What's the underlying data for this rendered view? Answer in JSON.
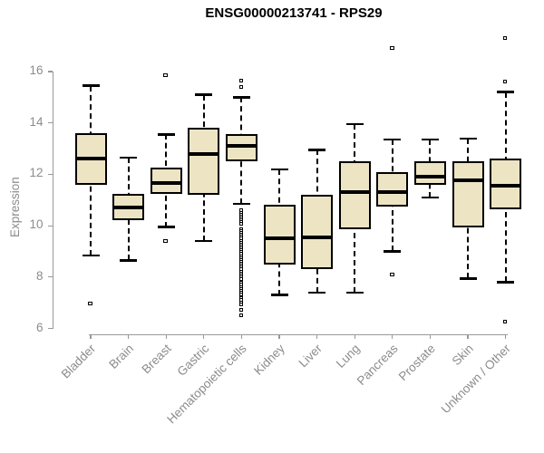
{
  "chart_data": {
    "type": "boxplot",
    "title": "ENSG00000213741 - RPS29",
    "ylabel": "Expression",
    "xlabel": "",
    "ylim": [
      6,
      16
    ],
    "yticks": [
      6,
      8,
      10,
      12,
      14,
      16
    ],
    "grid": false,
    "legend_position": "none",
    "colors": {
      "box_fill": "#EDE4C4",
      "box_border": "#000000",
      "median": "#000000",
      "whisker": "#000000",
      "axis": "#999999",
      "tick_label": "#8c8c8c",
      "title": "#000000",
      "background": "#ffffff"
    },
    "categories": [
      "Bladder",
      "Brain",
      "Breast",
      "Gastric",
      "Hematopoietic cells",
      "Kidney",
      "Liver",
      "Lung",
      "Pancreas",
      "Prostate",
      "Skin",
      "Unknown / Other"
    ],
    "series": [
      {
        "name": "Bladder",
        "whisker_low": 8.85,
        "q1": 11.6,
        "median": 12.6,
        "q3": 13.6,
        "whisker_high": 15.45,
        "outliers": [
          6.95
        ]
      },
      {
        "name": "Brain",
        "whisker_low": 8.65,
        "q1": 10.2,
        "median": 10.7,
        "q3": 11.25,
        "whisker_high": 12.65,
        "outliers": []
      },
      {
        "name": "Breast",
        "whisker_low": 9.95,
        "q1": 11.25,
        "median": 11.65,
        "q3": 12.25,
        "whisker_high": 13.55,
        "outliers": [
          15.85,
          9.4
        ]
      },
      {
        "name": "Gastric",
        "whisker_low": 9.4,
        "q1": 11.2,
        "median": 12.8,
        "q3": 13.8,
        "whisker_high": 15.1,
        "outliers": []
      },
      {
        "name": "Hematopoietic cells",
        "whisker_low": 10.85,
        "q1": 12.5,
        "median": 13.1,
        "q3": 13.55,
        "whisker_high": 15.0,
        "outliers": [
          15.65,
          15.4,
          10.6,
          10.5,
          10.42,
          10.35,
          10.28,
          10.2,
          10.12,
          10.05,
          9.85,
          9.78,
          9.7,
          9.62,
          9.55,
          9.48,
          9.4,
          9.32,
          9.25,
          9.18,
          9.1,
          9.02,
          8.95,
          8.88,
          8.8,
          8.72,
          8.65,
          8.58,
          8.5,
          8.42,
          8.35,
          8.28,
          8.2,
          8.12,
          8.05,
          7.98,
          7.9,
          7.82,
          7.75,
          7.68,
          7.6,
          7.52,
          7.45,
          7.38,
          7.3,
          7.22,
          7.15,
          7.08,
          7.0,
          6.92,
          6.7,
          6.5
        ]
      },
      {
        "name": "Kidney",
        "whisker_low": 7.3,
        "q1": 8.5,
        "median": 9.5,
        "q3": 10.8,
        "whisker_high": 12.2,
        "outliers": []
      },
      {
        "name": "Liver",
        "whisker_low": 7.4,
        "q1": 8.3,
        "median": 9.55,
        "q3": 11.2,
        "whisker_high": 12.95,
        "outliers": []
      },
      {
        "name": "Lung",
        "whisker_low": 7.4,
        "q1": 9.85,
        "median": 11.3,
        "q3": 12.5,
        "whisker_high": 13.95,
        "outliers": []
      },
      {
        "name": "Pancreas",
        "whisker_low": 9.0,
        "q1": 10.75,
        "median": 11.3,
        "q3": 12.1,
        "whisker_high": 13.35,
        "outliers": [
          16.9,
          8.1
        ]
      },
      {
        "name": "Prostate",
        "whisker_low": 11.1,
        "q1": 11.6,
        "median": 11.9,
        "q3": 12.5,
        "whisker_high": 13.35,
        "outliers": []
      },
      {
        "name": "Skin",
        "whisker_low": 7.95,
        "q1": 9.95,
        "median": 11.75,
        "q3": 12.5,
        "whisker_high": 13.4,
        "outliers": []
      },
      {
        "name": "Unknown / Other",
        "whisker_low": 7.8,
        "q1": 10.65,
        "median": 11.55,
        "q3": 12.6,
        "whisker_high": 15.2,
        "outliers": [
          17.3,
          15.6,
          6.25
        ]
      }
    ]
  }
}
